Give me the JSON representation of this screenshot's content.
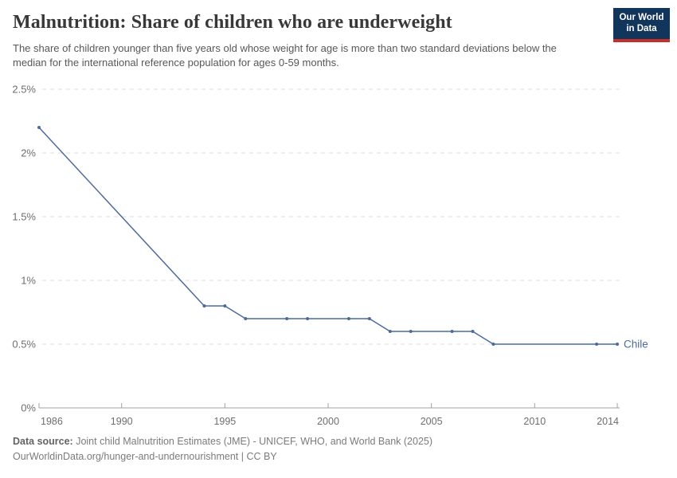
{
  "header": {
    "title": "Malnutrition: Share of children who are underweight",
    "subtitle": "The share of children younger than five years old whose weight for age is more than two standard deviations below the median for the international reference population for ages 0-59 months.",
    "logo": {
      "line1": "Our World",
      "line2": "in Data",
      "bg_color": "#12355C",
      "accent_color": "#C5302B"
    }
  },
  "chart_data": {
    "type": "line",
    "title": "Malnutrition: Share of children who are underweight",
    "xlabel": "",
    "ylabel": "",
    "xlim": [
      1986,
      2014
    ],
    "ylim": [
      0,
      2.5
    ],
    "grid": "horizontal-dashed",
    "legend_position": "end-of-line",
    "x_ticks": [
      1986,
      1990,
      1995,
      2000,
      2005,
      2010,
      2014
    ],
    "y_ticks": [
      0,
      0.5,
      1,
      1.5,
      2,
      2.5
    ],
    "y_tick_labels": [
      "0%",
      "0.5%",
      "1%",
      "1.5%",
      "2%",
      "2.5%"
    ],
    "series": [
      {
        "name": "Chile",
        "color": "#4C6A9C",
        "points": [
          {
            "x": 1986,
            "y": 2.2
          },
          {
            "x": 1994,
            "y": 0.8
          },
          {
            "x": 1995,
            "y": 0.8
          },
          {
            "x": 1996,
            "y": 0.7
          },
          {
            "x": 1998,
            "y": 0.7
          },
          {
            "x": 1999,
            "y": 0.7
          },
          {
            "x": 2001,
            "y": 0.7
          },
          {
            "x": 2002,
            "y": 0.7
          },
          {
            "x": 2003,
            "y": 0.6
          },
          {
            "x": 2004,
            "y": 0.6
          },
          {
            "x": 2006,
            "y": 0.6
          },
          {
            "x": 2007,
            "y": 0.6
          },
          {
            "x": 2008,
            "y": 0.5
          },
          {
            "x": 2013,
            "y": 0.5
          },
          {
            "x": 2014,
            "y": 0.5
          }
        ]
      }
    ],
    "colors": {
      "gridline": "#dedede",
      "axis": "#a1a1a1",
      "tick_label": "#6e6e6e"
    }
  },
  "footer": {
    "source_label": "Data source:",
    "source_text": " Joint child Malnutrition Estimates (JME) - UNICEF, WHO, and World Bank (2025)",
    "url_line": "OurWorldinData.org/hunger-and-undernourishment | CC BY"
  }
}
